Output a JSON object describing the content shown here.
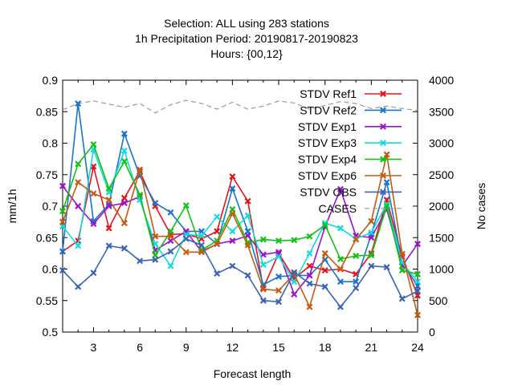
{
  "title_lines": [
    "Selection: ALL using   283 stations",
    "1h Precipitation   Period: 20190817-20190823",
    "Hours: {00,12}"
  ],
  "chart_data": {
    "type": "line",
    "xlabel": "Forecast length",
    "ylabel": "mm/1h",
    "y2label": "No cases",
    "xlim": [
      1,
      24
    ],
    "ylim": [
      0.5,
      0.9
    ],
    "y2lim": [
      0,
      4000
    ],
    "xticks": [
      3,
      6,
      9,
      12,
      15,
      18,
      21,
      24
    ],
    "yticks": [
      0.5,
      0.55,
      0.6,
      0.65,
      0.7,
      0.75,
      0.8,
      0.85,
      0.9
    ],
    "y2ticks": [
      0,
      500,
      1000,
      1500,
      2000,
      2500,
      3000,
      3500,
      4000
    ],
    "grid": false,
    "legend_position": "top-right",
    "x": [
      1,
      2,
      3,
      4,
      5,
      6,
      7,
      8,
      9,
      10,
      11,
      12,
      13,
      14,
      15,
      16,
      17,
      18,
      19,
      20,
      21,
      22,
      23,
      24
    ],
    "series": [
      {
        "name": "STDV Ref1",
        "color": "#e8121c",
        "marker": "x",
        "axis": "left",
        "values": [
          0.628,
          0.645,
          0.763,
          0.665,
          0.713,
          0.755,
          0.7,
          0.655,
          0.656,
          0.648,
          0.66,
          0.747,
          0.708,
          0.57,
          0.625,
          0.585,
          0.605,
          0.598,
          0.6,
          0.592,
          0.625,
          0.71,
          0.62,
          0.558
        ]
      },
      {
        "name": "STDV Ref2",
        "color": "#1874cd",
        "marker": "x",
        "axis": "left",
        "values": [
          0.628,
          0.863,
          0.676,
          0.703,
          0.815,
          0.748,
          0.705,
          0.69,
          0.66,
          0.66,
          0.64,
          0.728,
          0.66,
          0.575,
          0.588,
          0.59,
          0.59,
          0.615,
          0.58,
          0.58,
          0.655,
          0.738,
          0.61,
          0.573
        ]
      },
      {
        "name": "STDV Exp1",
        "color": "#9a12cd",
        "marker": "x",
        "axis": "left",
        "values": [
          0.732,
          0.7,
          0.672,
          0.7,
          0.705,
          0.715,
          0.63,
          0.645,
          0.66,
          0.628,
          0.64,
          0.645,
          0.653,
          0.623,
          0.627,
          0.56,
          0.59,
          0.667,
          0.727,
          0.653,
          0.65,
          0.695,
          0.605,
          0.64
        ]
      },
      {
        "name": "STDV Exp3",
        "color": "#12dae0",
        "marker": "x",
        "axis": "left",
        "values": [
          0.668,
          0.637,
          0.79,
          0.722,
          0.788,
          0.71,
          0.64,
          0.605,
          0.655,
          0.653,
          0.683,
          0.66,
          0.685,
          0.607,
          0.62,
          0.58,
          0.625,
          0.673,
          0.665,
          0.648,
          0.658,
          0.703,
          0.61,
          0.58
        ]
      },
      {
        "name": "STDV Exp4",
        "color": "#12c212",
        "marker": "x",
        "axis": "left",
        "values": [
          0.692,
          0.767,
          0.798,
          0.728,
          0.771,
          0.718,
          0.622,
          0.66,
          0.701,
          0.63,
          0.645,
          0.695,
          0.642,
          0.647,
          0.645,
          0.646,
          0.652,
          0.67,
          0.616,
          0.621,
          0.622,
          0.7,
          0.598,
          0.592
        ]
      },
      {
        "name": "STDV Exp6",
        "color": "#c65a0e",
        "marker": "x",
        "axis": "left",
        "values": [
          0.675,
          0.738,
          0.72,
          0.71,
          0.673,
          0.758,
          0.652,
          0.652,
          0.627,
          0.627,
          0.64,
          0.688,
          0.638,
          0.568,
          0.566,
          0.592,
          0.54,
          0.625,
          0.6,
          0.647,
          0.676,
          0.782,
          0.624,
          0.527
        ]
      },
      {
        "name": "STDV OBS",
        "color": "#3a62b8",
        "marker": "x",
        "axis": "left",
        "values": [
          0.598,
          0.572,
          0.594,
          0.637,
          0.633,
          0.613,
          0.615,
          0.628,
          0.648,
          0.638,
          0.593,
          0.605,
          0.59,
          0.55,
          0.548,
          0.595,
          0.577,
          0.572,
          0.54,
          0.57,
          0.605,
          0.603,
          0.553,
          0.565
        ]
      },
      {
        "name": "CASES",
        "color": "#999999",
        "marker": "none",
        "dashed": true,
        "axis": "right",
        "values": [
          3530,
          3630,
          3670,
          3620,
          3570,
          3630,
          3480,
          3610,
          3680,
          3630,
          3540,
          3650,
          3540,
          3590,
          3670,
          3640,
          3540,
          3600,
          3660,
          3630,
          3550,
          3590,
          3550,
          3520
        ]
      }
    ]
  }
}
